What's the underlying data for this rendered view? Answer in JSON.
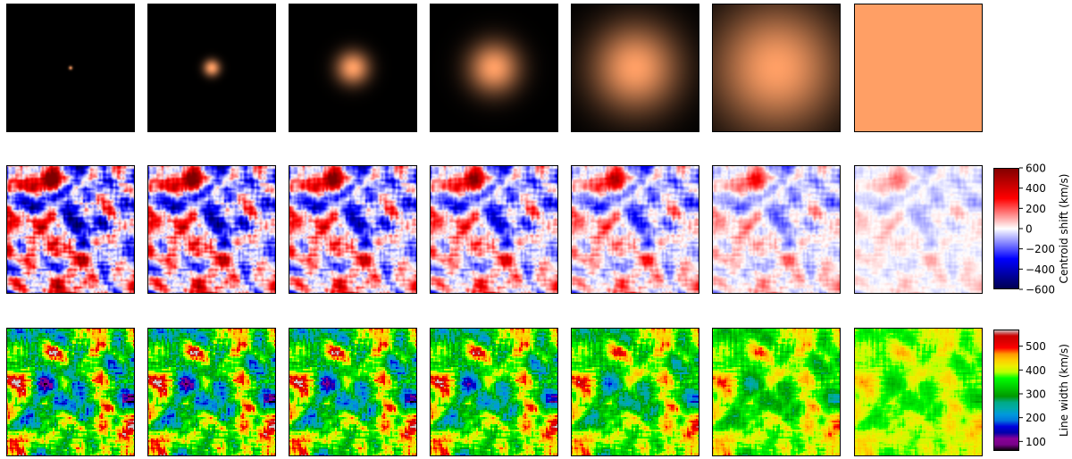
{
  "chart_data": [
    {
      "type": "heatmap",
      "row": "psf",
      "panels": [
        {
          "psf_relative_width": 0.02
        },
        {
          "psf_relative_width": 0.09
        },
        {
          "psf_relative_width": 0.18
        },
        {
          "psf_relative_width": 0.28
        },
        {
          "psf_relative_width": 0.48
        },
        {
          "psf_relative_width": 0.7
        },
        {
          "psf_relative_width": 1.0,
          "uniform": true
        }
      ],
      "cmap": "copper",
      "colorbar": null
    },
    {
      "type": "heatmap",
      "row": "centroid",
      "panels_relative_amplitude": [
        1.0,
        0.97,
        0.93,
        0.86,
        0.72,
        0.52,
        0.28
      ],
      "cmap": "seismic",
      "vmin": -600,
      "vmax": 600,
      "colorbar": {
        "label": "Centroid shift (km/s)",
        "ticks": [
          600,
          400,
          200,
          0,
          -200,
          -400,
          -600
        ],
        "tick_labels": [
          "600",
          "400",
          "200",
          "0",
          "−200",
          "−400",
          "−600"
        ]
      }
    },
    {
      "type": "heatmap",
      "row": "linewidth",
      "panels_relative_contrast": [
        1.0,
        0.97,
        0.93,
        0.86,
        0.72,
        0.52,
        0.3
      ],
      "cmap": "nipy_spectral",
      "vmin": 60,
      "vmax": 570,
      "colorbar": {
        "label": "Line width (km/s)",
        "ticks": [
          500,
          400,
          300,
          200,
          100
        ],
        "tick_labels": [
          "500",
          "400",
          "300",
          "200",
          "100"
        ]
      }
    }
  ]
}
